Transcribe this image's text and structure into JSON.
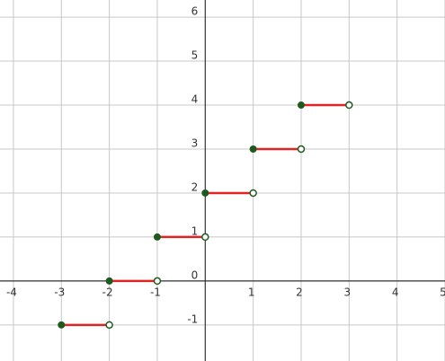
{
  "chart_data": {
    "type": "step",
    "x": [
      -3,
      -2,
      -1,
      0,
      1,
      2
    ],
    "x_end": [
      -2,
      -1,
      0,
      1,
      2,
      3
    ],
    "values": [
      -1,
      0,
      1,
      2,
      3,
      4
    ],
    "color": "#e02424",
    "point_color": "#1e5a1e",
    "xlim": [
      -4.28,
      5.0
    ],
    "ylim": [
      -1.82,
      6.39
    ],
    "xticks": [
      -4,
      -3,
      -2,
      -1,
      1,
      2,
      3,
      4,
      5
    ],
    "yticks": [
      -1,
      0,
      1,
      2,
      3,
      4,
      5,
      6
    ],
    "grid": true
  }
}
